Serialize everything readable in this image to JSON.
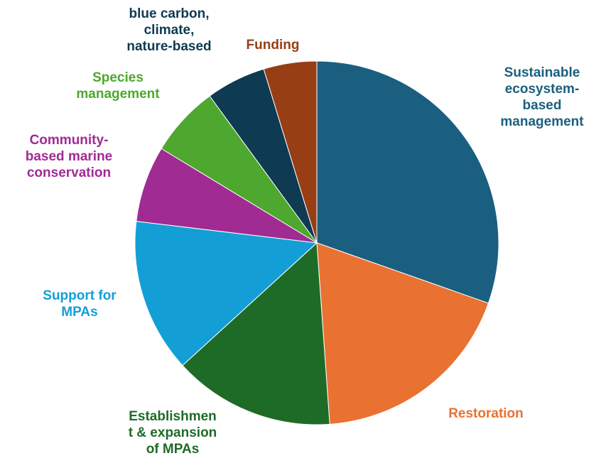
{
  "chart_data": {
    "type": "pie",
    "start_angle_deg": 0,
    "direction": "clockwise",
    "slices": [
      {
        "label": "Sustainable\necosystem-\nbased\nmanagement",
        "value": 30.9,
        "color": "#1a5f7f"
      },
      {
        "label": "Restoration",
        "value": 18.8,
        "color": "#e97132"
      },
      {
        "label": "Establishmen\nt & expansion\nof MPAs",
        "value": 14.6,
        "color": "#1e6b28"
      },
      {
        "label": "Support for\nMPAs",
        "value": 13.9,
        "color": "#139fd6"
      },
      {
        "label": "Community-\nbased marine\nconservation",
        "value": 6.9,
        "color": "#a02b93"
      },
      {
        "label": "Species\nmanagement",
        "value": 6.4,
        "color": "#4ea72e"
      },
      {
        "label": "blue carbon,\nclimate,\nnature-based",
        "value": 5.4,
        "color": "#0e3a52"
      },
      {
        "label": "Funding",
        "value": 4.8,
        "color": "#973e14"
      }
    ],
    "label_colors": [
      "#1a5f7f",
      "#e97132",
      "#1e6b28",
      "#139fd6",
      "#a02b93",
      "#4ea72e",
      "#0e3a52",
      "#973e14"
    ]
  }
}
